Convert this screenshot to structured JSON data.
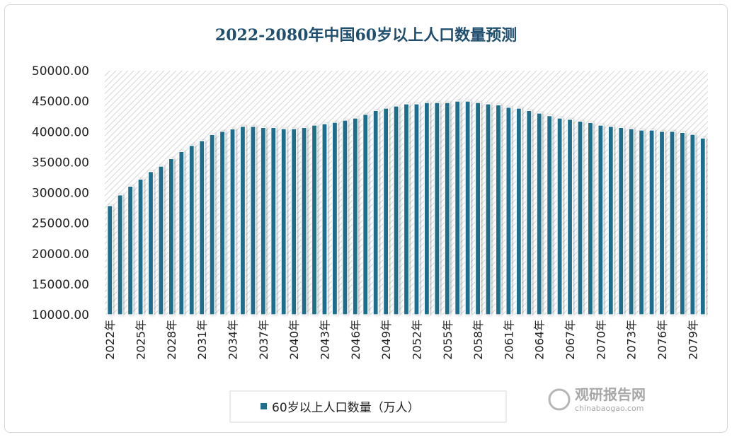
{
  "chart_data": {
    "type": "bar",
    "title": "2022-2080年中国60岁以上人口数量预测",
    "xlabel": "",
    "ylabel": "",
    "ylim": [
      10000,
      50000
    ],
    "yticks": [
      "10000.00",
      "15000.00",
      "20000.00",
      "25000.00",
      "30000.00",
      "35000.00",
      "40000.00",
      "45000.00",
      "50000.00"
    ],
    "categories": [
      "2022年",
      "2023年",
      "2024年",
      "2025年",
      "2026年",
      "2027年",
      "2028年",
      "2029年",
      "2030年",
      "2031年",
      "2032年",
      "2033年",
      "2034年",
      "2035年",
      "2036年",
      "2037年",
      "2038年",
      "2039年",
      "2040年",
      "2041年",
      "2042年",
      "2043年",
      "2044年",
      "2045年",
      "2046年",
      "2047年",
      "2048年",
      "2049年",
      "2050年",
      "2051年",
      "2052年",
      "2053年",
      "2054年",
      "2055年",
      "2056年",
      "2057年",
      "2058年",
      "2059年",
      "2060年",
      "2061年",
      "2062年",
      "2063年",
      "2064年",
      "2065年",
      "2066年",
      "2067年",
      "2068年",
      "2069年",
      "2070年",
      "2071年",
      "2072年",
      "2073年",
      "2074年",
      "2075年",
      "2076年",
      "2077年",
      "2078年",
      "2079年",
      "2080年"
    ],
    "xtick_labels": [
      "2022年",
      "2025年",
      "2028年",
      "2031年",
      "2034年",
      "2037年",
      "2040年",
      "2043年",
      "2046年",
      "2049年",
      "2052年",
      "2055年",
      "2058年",
      "2061年",
      "2064年",
      "2067年",
      "2070年",
      "2073年",
      "2076年",
      "2079年"
    ],
    "series": [
      {
        "name": "60岁以上人口数量（万人）",
        "color": "#1f6e8c",
        "values": [
          27880,
          29620,
          31060,
          32220,
          33450,
          34340,
          35580,
          36740,
          37740,
          38520,
          39530,
          40060,
          40450,
          40870,
          40870,
          40680,
          40680,
          40490,
          40490,
          40680,
          41070,
          41300,
          41530,
          41880,
          42230,
          42850,
          43470,
          43850,
          44200,
          44550,
          44550,
          44780,
          44780,
          44780,
          45010,
          45010,
          44780,
          44550,
          44390,
          44000,
          43850,
          43470,
          43040,
          42610,
          42230,
          42030,
          41730,
          41500,
          41070,
          40870,
          40680,
          40490,
          40260,
          40260,
          40060,
          40060,
          39870,
          39560,
          38950
        ]
      }
    ],
    "grid": false,
    "legend": "bottom",
    "plot_background": "diagonal-hatch"
  },
  "watermark": {
    "name": "观研报告网",
    "url": "chinabaogao.com"
  }
}
